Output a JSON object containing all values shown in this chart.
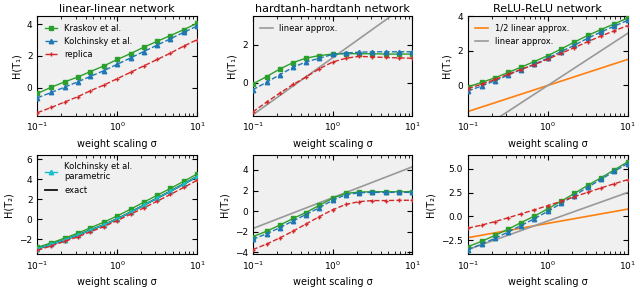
{
  "sigma": [
    0.1,
    0.15,
    0.22,
    0.32,
    0.46,
    0.68,
    1.0,
    1.47,
    2.15,
    3.16,
    4.64,
    6.81,
    10.0
  ],
  "titles_top": [
    "linear-linear network",
    "hardtanh-hardtanh network",
    "ReLU-ReLU network"
  ],
  "ylabel_top": "H(T₁)",
  "ylabel_bot": "H(T₂)",
  "xlabel": "weight scaling σ",
  "color_green": "#2ca02c",
  "color_blue": "#1f77b4",
  "color_red": "#d62728",
  "color_cyan": "#17becf",
  "color_gray": "#999999",
  "color_orange": "#ff7f0e",
  "color_black": "#111111",
  "lin_lin_T1_kraskov": [
    -0.35,
    0.05,
    0.38,
    0.68,
    1.02,
    1.38,
    1.78,
    2.15,
    2.55,
    2.92,
    3.28,
    3.65,
    4.05
  ],
  "lin_lin_T1_kolchinsky": [
    -0.62,
    -0.28,
    0.05,
    0.38,
    0.72,
    1.08,
    1.48,
    1.88,
    2.28,
    2.68,
    3.08,
    3.48,
    3.88
  ],
  "lin_lin_T1_replica": [
    -1.55,
    -1.22,
    -0.88,
    -0.55,
    -0.18,
    0.18,
    0.58,
    0.98,
    1.38,
    1.78,
    2.18,
    2.62,
    3.02
  ],
  "lin_lin_T2_kraskov": [
    -2.8,
    -2.35,
    -1.88,
    -1.38,
    -0.85,
    -0.28,
    0.35,
    1.02,
    1.72,
    2.42,
    3.1,
    3.82,
    4.55
  ],
  "lin_lin_T2_kolchinsky": [
    -2.95,
    -2.5,
    -2.05,
    -1.58,
    -1.08,
    -0.55,
    0.05,
    0.72,
    1.42,
    2.12,
    2.82,
    3.55,
    4.28
  ],
  "lin_lin_T2_replica": [
    -3.1,
    -2.65,
    -2.2,
    -1.75,
    -1.25,
    -0.72,
    -0.12,
    0.52,
    1.15,
    1.82,
    2.5,
    3.2,
    3.92
  ],
  "lin_lin_T2_exact": [
    -2.95,
    -2.5,
    -2.05,
    -1.58,
    -1.08,
    -0.55,
    0.05,
    0.72,
    1.42,
    2.12,
    2.82,
    3.55,
    4.28
  ],
  "hth_T1_kraskov": [
    -0.08,
    0.32,
    0.72,
    1.05,
    1.28,
    1.42,
    1.5,
    1.52,
    1.52,
    1.52,
    1.5,
    1.5,
    1.5
  ],
  "hth_T1_kolchinsky": [
    -0.38,
    0.02,
    0.42,
    0.8,
    1.08,
    1.28,
    1.48,
    1.55,
    1.6,
    1.62,
    1.62,
    1.62,
    1.62
  ],
  "hth_T1_replica": [
    -1.55,
    -1.02,
    -0.55,
    -0.1,
    0.28,
    0.72,
    1.08,
    1.28,
    1.38,
    1.35,
    1.32,
    1.3,
    1.28
  ],
  "hth_T1_linear_slope": 3.0,
  "hth_T1_linear_intercept": 1.3,
  "hth_T2_kraskov": [
    -2.5,
    -1.95,
    -1.35,
    -0.72,
    -0.15,
    0.55,
    1.25,
    1.72,
    1.85,
    1.88,
    1.88,
    1.88,
    1.88
  ],
  "hth_T2_kolchinsky": [
    -2.75,
    -2.2,
    -1.6,
    -0.95,
    -0.35,
    0.32,
    1.05,
    1.6,
    1.78,
    1.82,
    1.82,
    1.82,
    1.82
  ],
  "hth_T2_replica": [
    -3.75,
    -3.2,
    -2.6,
    -1.95,
    -1.28,
    -0.55,
    0.12,
    0.65,
    0.92,
    1.02,
    1.02,
    1.05,
    1.05
  ],
  "hth_T2_linear_slope": 3.0,
  "hth_T2_linear_intercept": 1.3,
  "relu_T1_kraskov": [
    -0.08,
    0.18,
    0.45,
    0.75,
    1.05,
    1.38,
    1.72,
    2.1,
    2.5,
    2.88,
    3.22,
    3.55,
    3.88
  ],
  "relu_T1_kolchinsky": [
    -0.32,
    -0.02,
    0.28,
    0.6,
    0.92,
    1.22,
    1.58,
    1.95,
    2.32,
    2.72,
    3.08,
    3.42,
    3.75
  ],
  "relu_T1_replica": [
    -0.18,
    0.08,
    0.35,
    0.65,
    0.92,
    1.2,
    1.52,
    1.85,
    2.18,
    2.52,
    2.85,
    3.15,
    3.45
  ],
  "relu_T1_half_linear_slope": 1.5,
  "relu_T1_half_linear_intercept": 0.0,
  "relu_T1_linear_slope": 3.0,
  "relu_T1_linear_intercept": 0.0,
  "relu_T2_kraskov": [
    -3.2,
    -2.62,
    -2.0,
    -1.35,
    -0.68,
    0.02,
    0.78,
    1.58,
    2.4,
    3.25,
    4.05,
    4.88,
    5.72
  ],
  "relu_T2_kolchinsky": [
    -3.5,
    -2.92,
    -2.3,
    -1.65,
    -0.98,
    -0.25,
    0.52,
    1.35,
    2.18,
    3.05,
    3.88,
    4.72,
    5.55
  ],
  "relu_T2_replica": [
    -1.25,
    -0.92,
    -0.55,
    -0.15,
    0.25,
    0.68,
    1.12,
    1.58,
    2.05,
    2.52,
    2.98,
    3.42,
    3.85
  ],
  "relu_T2_half_linear_slope": 1.5,
  "relu_T2_half_linear_intercept": -0.75,
  "relu_T2_linear_slope": 3.0,
  "relu_T2_linear_intercept": -0.5
}
